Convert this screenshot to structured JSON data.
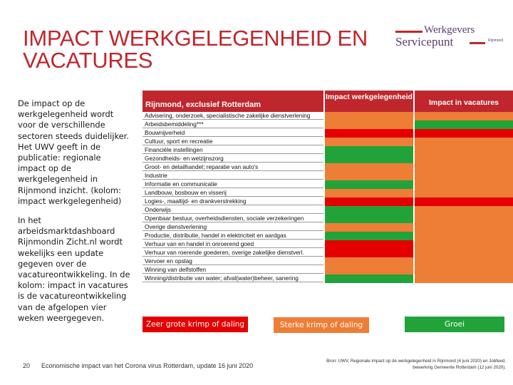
{
  "slide": {
    "title": "IMPACT WERKGELEGENHEID EN VACATURES",
    "logo": {
      "line1": "Werkgevers",
      "line2": "Servicepunt",
      "region": "Rijnmond"
    },
    "text1": "De impact op de werkgelegenheid wordt voor de verschillende sectoren steeds duidelijker. Het UWV geeft in de publicatie: regionale impact op de werkgelegenheid in Rijnmond inzicht. (kolom: impact werkgelegenheid)",
    "text2": "In het arbeidsmarktdashboard Rijnmondin Zicht.nl wordt wekelijks een update gegeven over de vacatureontwikkeling. In de kolom: impact in vacatures is de vacatureontwikkeling van de afgelopen vier weken weergegeven.",
    "page_number": "20",
    "footer": "Economische impact van het Corona virus Rotterdam, update 16 juni 2020",
    "source": "Bron: UWV, Regionale impact op de werkgelegenheid in Rijnmond (4 juni 2020) en Jobfeed, bewerking Gemeente Rotterdam (12 juni 2020)."
  },
  "table": {
    "headers": {
      "sector": "Rijnmond, exclusief Rotterdam",
      "impact": "Impact werkgelegenheid",
      "vacatures": "Impact in vacatures"
    },
    "colors": {
      "red": "#e40000",
      "orange": "#ee7d36",
      "green": "#22a33a",
      "light_green": "#6ab04c",
      "header": "#c0262d"
    },
    "rows": [
      {
        "sector": "Advisering, onderzoek, specialistische zakelijke dienstverlening",
        "impact": "orange",
        "vacatures": "orange"
      },
      {
        "sector": "Arbeidsbemiddeling***",
        "impact": "orange",
        "vacatures": "green"
      },
      {
        "sector": "Bouwnijverheid",
        "impact": "red",
        "vacatures": "red"
      },
      {
        "sector": "Cultuur, sport en recreatie",
        "impact": "orange",
        "vacatures": "orange"
      },
      {
        "sector": "Financiële instellingen",
        "impact": "green",
        "vacatures": "orange"
      },
      {
        "sector": "Gezondheids- en welzijnszorg",
        "impact": "green",
        "vacatures": "orange"
      },
      {
        "sector": "Groot- en detailhandel; reparatie van auto's",
        "impact": "orange",
        "vacatures": "orange"
      },
      {
        "sector": "Industrie",
        "impact": "orange",
        "vacatures": "orange"
      },
      {
        "sector": "Informatie en communicatie",
        "impact": "green",
        "vacatures": "orange"
      },
      {
        "sector": "Landbouw, bosbouw en visserij",
        "impact": "orange",
        "vacatures": "orange"
      },
      {
        "sector": "Logies-, maaltijd- en drankverstrekking",
        "impact": "red",
        "vacatures": "red"
      },
      {
        "sector": "Onderwijs",
        "impact": "green",
        "vacatures": "orange"
      },
      {
        "sector": "Openbaar bestuur, overheidsdiensten, sociale verzekeringen",
        "impact": "green",
        "vacatures": "orange"
      },
      {
        "sector": "Overige dienstverlening",
        "impact": "orange",
        "vacatures": "orange"
      },
      {
        "sector": "Productie, distributie, handel in elektriciteit en aardgas",
        "impact": "green",
        "vacatures": "orange"
      },
      {
        "sector": "Verhuur van en handel in onroerend goed",
        "impact": "red",
        "vacatures": "orange"
      },
      {
        "sector": "Verhuur van roerende goederen, overige zakelijke dienstverl.",
        "impact": "red",
        "vacatures": "orange"
      },
      {
        "sector": "Vervoer en opslag",
        "impact": "orange",
        "vacatures": "orange"
      },
      {
        "sector": "Winning van delfstoffen",
        "impact": "orange",
        "vacatures": "orange"
      },
      {
        "sector": "Winning/distributie van water; afval(water)beheer, sanering",
        "impact": "green",
        "vacatures": "orange"
      }
    ]
  },
  "legend": {
    "zeer_sterk": "Zeer grote krimp of daling",
    "sterk": "Sterke krimp of daling",
    "groei": "Groei"
  }
}
